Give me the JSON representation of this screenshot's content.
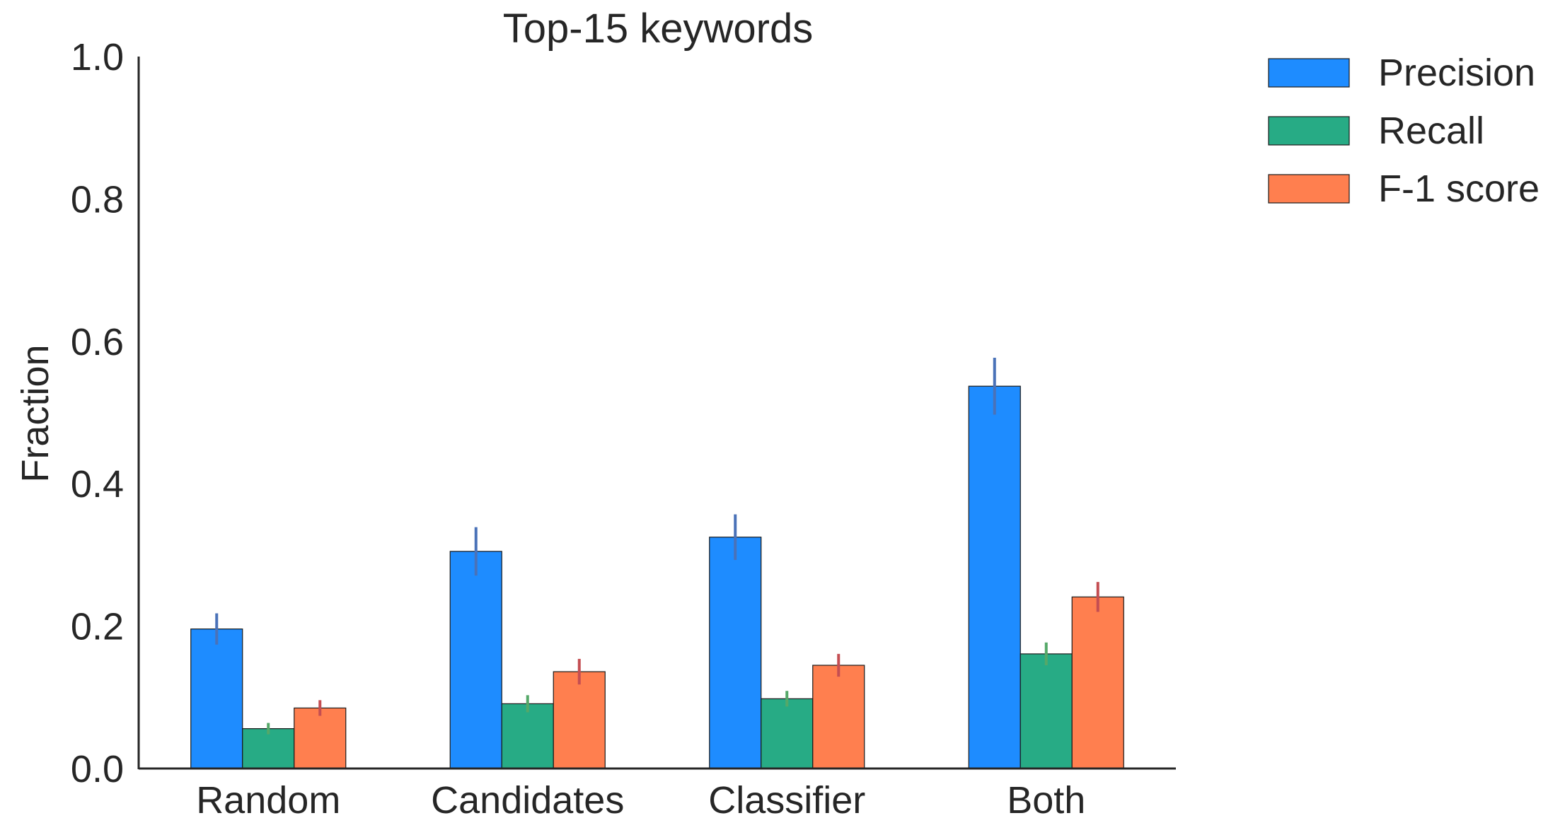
{
  "chart_data": {
    "type": "bar",
    "title": "Top-15 keywords",
    "xlabel": "",
    "ylabel": "Fraction",
    "ylim": [
      0,
      1.0
    ],
    "yticks": [
      "0.0",
      "0.2",
      "0.4",
      "0.6",
      "0.8",
      "1.0"
    ],
    "categories": [
      "Random",
      "Candidates",
      "Classifier",
      "Both"
    ],
    "series": [
      {
        "name": "Precision",
        "color": "#1e8cff",
        "errcolor": "#4a72b8",
        "values": [
          0.196,
          0.305,
          0.325,
          0.537
        ],
        "err": [
          0.022,
          0.034,
          0.032,
          0.04
        ]
      },
      {
        "name": "Recall",
        "color": "#27ab85",
        "errcolor": "#55a868",
        "values": [
          0.056,
          0.091,
          0.098,
          0.161
        ],
        "err": [
          0.008,
          0.012,
          0.011,
          0.016
        ]
      },
      {
        "name": "F-1 score",
        "color": "#ff7f4f",
        "errcolor": "#c44e52",
        "values": [
          0.085,
          0.136,
          0.145,
          0.241
        ],
        "err": [
          0.011,
          0.018,
          0.016,
          0.021
        ]
      }
    ],
    "legend_position": "top-right",
    "grid": false
  }
}
